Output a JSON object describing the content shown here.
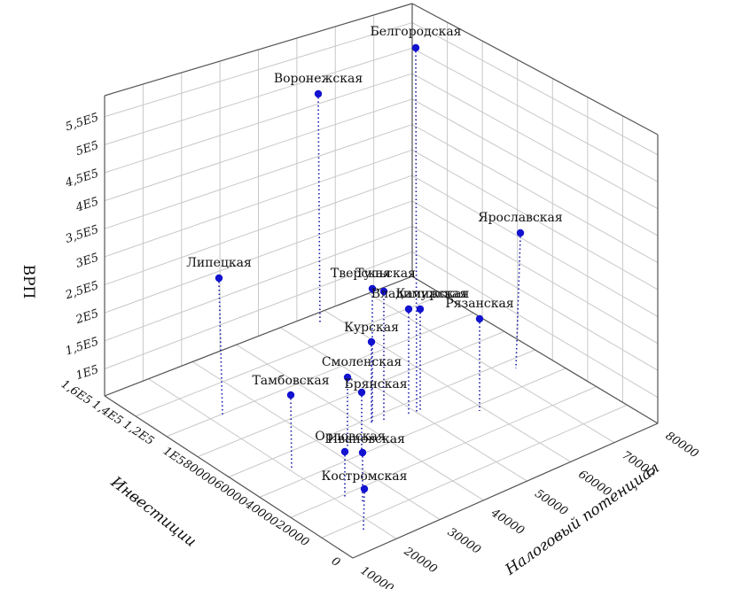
{
  "chart_data": {
    "type": "scatter3d",
    "axes": {
      "z": {
        "label": "ВРП",
        "ticks": [
          "1E5",
          "1,5E5",
          "2E5",
          "2,5E5",
          "3E5",
          "3,5E5",
          "4E5",
          "4,5E5",
          "5E5",
          "5,5E5"
        ]
      },
      "y": {
        "label": "Инвестиции",
        "ticks": [
          "0",
          "20000",
          "40000",
          "60000",
          "80000",
          "1E5",
          "1,2E5",
          "1,4E5",
          "1,6E5"
        ]
      },
      "x": {
        "label": "Налоговый потенциал",
        "ticks": [
          "10000",
          "20000",
          "30000",
          "40000",
          "50000",
          "60000",
          "70000",
          "80000"
        ]
      }
    },
    "points": [
      {
        "name": "Белгородская",
        "vrp": 530000
      },
      {
        "name": "Воронежская",
        "vrp": 470000
      },
      {
        "name": "Ярославская",
        "vrp": 300000
      },
      {
        "name": "Липецкая",
        "vrp": 260000
      },
      {
        "name": "Тверская",
        "vrp": 230000
      },
      {
        "name": "Тульская",
        "vrp": 225000
      },
      {
        "name": "Владимирская",
        "vrp": 200000
      },
      {
        "name": "Калужская",
        "vrp": 200000
      },
      {
        "name": "Рязанская",
        "vrp": 190000
      },
      {
        "name": "Курская",
        "vrp": 180000
      },
      {
        "name": "Смоленская",
        "vrp": 150000
      },
      {
        "name": "Брянская",
        "vrp": 140000
      },
      {
        "name": "Тамбовская",
        "vrp": 140000
      },
      {
        "name": "Орловская",
        "vrp": 110000
      },
      {
        "name": "Ивановская",
        "vrp": 110000
      },
      {
        "name": "Костромская",
        "vrp": 95000
      }
    ]
  }
}
